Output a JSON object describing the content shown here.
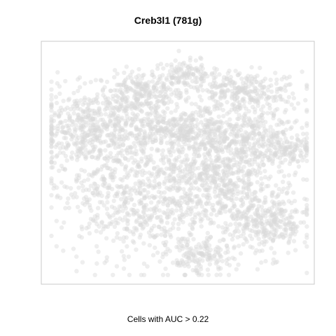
{
  "chart_data": {
    "type": "scatter",
    "title": "Creb3l1 (781g)",
    "xlabel": "Cells with AUC > 0.22",
    "ylabel": "",
    "grid": false,
    "legend": "none",
    "axes_ticks": false,
    "point_color": "#d9d9d9",
    "point_opacity": 0.45,
    "frame_color": "#c8c8c8",
    "highlighted_cells": 0,
    "clusters": [
      {
        "cx": 0.36,
        "cy": 0.79,
        "sx": 0.08,
        "sy": 0.045,
        "n": 260
      },
      {
        "cx": 0.53,
        "cy": 0.87,
        "sx": 0.06,
        "sy": 0.03,
        "n": 120
      },
      {
        "cx": 0.74,
        "cy": 0.79,
        "sx": 0.11,
        "sy": 0.045,
        "n": 300
      },
      {
        "cx": 0.5,
        "cy": 0.64,
        "sx": 0.12,
        "sy": 0.04,
        "n": 340
      },
      {
        "cx": 0.18,
        "cy": 0.64,
        "sx": 0.11,
        "sy": 0.08,
        "n": 460
      },
      {
        "cx": 0.8,
        "cy": 0.58,
        "sx": 0.1,
        "sy": 0.07,
        "n": 360
      },
      {
        "cx": 0.35,
        "cy": 0.38,
        "sx": 0.15,
        "sy": 0.14,
        "n": 760
      },
      {
        "cx": 0.65,
        "cy": 0.44,
        "sx": 0.1,
        "sy": 0.11,
        "n": 520
      },
      {
        "cx": 0.83,
        "cy": 0.25,
        "sx": 0.08,
        "sy": 0.07,
        "n": 330
      },
      {
        "cx": 0.58,
        "cy": 0.1,
        "sx": 0.06,
        "sy": 0.04,
        "n": 150
      },
      {
        "cx": 0.93,
        "cy": 0.55,
        "sx": 0.03,
        "sy": 0.02,
        "n": 40
      }
    ]
  }
}
